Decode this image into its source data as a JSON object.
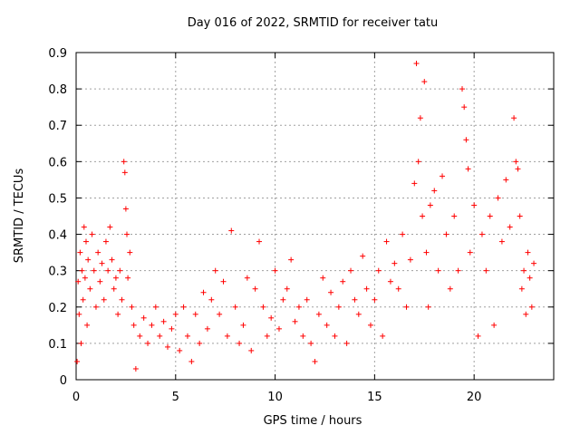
{
  "chart_data": {
    "type": "scatter",
    "title": "Day 016 of 2022, SRMTID for receiver tatu",
    "xlabel": "GPS time / hours",
    "ylabel": "SRMTID / TECUs",
    "xlim": [
      0,
      24
    ],
    "ylim": [
      0,
      0.9
    ],
    "xticks": [
      0,
      5,
      10,
      15,
      20
    ],
    "yticks": [
      0,
      0.1,
      0.2,
      0.3,
      0.4,
      0.5,
      0.6,
      0.7,
      0.8,
      0.9
    ],
    "grid": true,
    "marker": "+",
    "series": [
      {
        "name": "SRMTID",
        "color": "#ff0000",
        "points": [
          [
            0.05,
            0.05
          ],
          [
            0.1,
            0.27
          ],
          [
            0.15,
            0.18
          ],
          [
            0.2,
            0.35
          ],
          [
            0.25,
            0.1
          ],
          [
            0.3,
            0.3
          ],
          [
            0.35,
            0.22
          ],
          [
            0.4,
            0.42
          ],
          [
            0.45,
            0.28
          ],
          [
            0.5,
            0.38
          ],
          [
            0.55,
            0.15
          ],
          [
            0.6,
            0.33
          ],
          [
            0.7,
            0.25
          ],
          [
            0.8,
            0.4
          ],
          [
            0.9,
            0.3
          ],
          [
            1.0,
            0.2
          ],
          [
            1.1,
            0.35
          ],
          [
            1.2,
            0.27
          ],
          [
            1.3,
            0.32
          ],
          [
            1.4,
            0.22
          ],
          [
            1.5,
            0.38
          ],
          [
            1.6,
            0.3
          ],
          [
            1.7,
            0.42
          ],
          [
            1.8,
            0.33
          ],
          [
            1.9,
            0.25
          ],
          [
            2.0,
            0.28
          ],
          [
            2.1,
            0.18
          ],
          [
            2.2,
            0.3
          ],
          [
            2.3,
            0.22
          ],
          [
            2.4,
            0.6
          ],
          [
            2.45,
            0.57
          ],
          [
            2.5,
            0.47
          ],
          [
            2.55,
            0.4
          ],
          [
            2.6,
            0.28
          ],
          [
            2.7,
            0.35
          ],
          [
            2.8,
            0.2
          ],
          [
            2.9,
            0.15
          ],
          [
            3.0,
            0.03
          ],
          [
            3.2,
            0.12
          ],
          [
            3.4,
            0.17
          ],
          [
            3.6,
            0.1
          ],
          [
            3.8,
            0.15
          ],
          [
            4.0,
            0.2
          ],
          [
            4.2,
            0.12
          ],
          [
            4.4,
            0.16
          ],
          [
            4.6,
            0.09
          ],
          [
            4.8,
            0.14
          ],
          [
            5.0,
            0.18
          ],
          [
            5.2,
            0.08
          ],
          [
            5.4,
            0.2
          ],
          [
            5.6,
            0.12
          ],
          [
            5.8,
            0.05
          ],
          [
            6.0,
            0.18
          ],
          [
            6.2,
            0.1
          ],
          [
            6.4,
            0.24
          ],
          [
            6.6,
            0.14
          ],
          [
            6.8,
            0.22
          ],
          [
            7.0,
            0.3
          ],
          [
            7.2,
            0.18
          ],
          [
            7.4,
            0.27
          ],
          [
            7.6,
            0.12
          ],
          [
            7.8,
            0.41
          ],
          [
            8.0,
            0.2
          ],
          [
            8.2,
            0.1
          ],
          [
            8.4,
            0.15
          ],
          [
            8.6,
            0.28
          ],
          [
            8.8,
            0.08
          ],
          [
            9.0,
            0.25
          ],
          [
            9.2,
            0.38
          ],
          [
            9.4,
            0.2
          ],
          [
            9.6,
            0.12
          ],
          [
            9.8,
            0.17
          ],
          [
            10.0,
            0.3
          ],
          [
            10.2,
            0.14
          ],
          [
            10.4,
            0.22
          ],
          [
            10.6,
            0.25
          ],
          [
            10.8,
            0.33
          ],
          [
            11.0,
            0.16
          ],
          [
            11.2,
            0.2
          ],
          [
            11.4,
            0.12
          ],
          [
            11.6,
            0.22
          ],
          [
            11.8,
            0.1
          ],
          [
            12.0,
            0.05
          ],
          [
            12.2,
            0.18
          ],
          [
            12.4,
            0.28
          ],
          [
            12.6,
            0.15
          ],
          [
            12.8,
            0.24
          ],
          [
            13.0,
            0.12
          ],
          [
            13.2,
            0.2
          ],
          [
            13.4,
            0.27
          ],
          [
            13.6,
            0.1
          ],
          [
            13.8,
            0.3
          ],
          [
            14.0,
            0.22
          ],
          [
            14.2,
            0.18
          ],
          [
            14.4,
            0.34
          ],
          [
            14.6,
            0.25
          ],
          [
            14.8,
            0.15
          ],
          [
            15.0,
            0.22
          ],
          [
            15.2,
            0.3
          ],
          [
            15.4,
            0.12
          ],
          [
            15.6,
            0.38
          ],
          [
            15.8,
            0.27
          ],
          [
            16.0,
            0.32
          ],
          [
            16.2,
            0.25
          ],
          [
            16.4,
            0.4
          ],
          [
            16.6,
            0.2
          ],
          [
            16.8,
            0.33
          ],
          [
            17.0,
            0.54
          ],
          [
            17.1,
            0.87
          ],
          [
            17.2,
            0.6
          ],
          [
            17.3,
            0.72
          ],
          [
            17.4,
            0.45
          ],
          [
            17.5,
            0.82
          ],
          [
            17.6,
            0.35
          ],
          [
            17.7,
            0.2
          ],
          [
            17.8,
            0.48
          ],
          [
            18.0,
            0.52
          ],
          [
            18.2,
            0.3
          ],
          [
            18.4,
            0.56
          ],
          [
            18.6,
            0.4
          ],
          [
            18.8,
            0.25
          ],
          [
            19.0,
            0.45
          ],
          [
            19.2,
            0.3
          ],
          [
            19.4,
            0.8
          ],
          [
            19.5,
            0.75
          ],
          [
            19.6,
            0.66
          ],
          [
            19.7,
            0.58
          ],
          [
            19.8,
            0.35
          ],
          [
            20.0,
            0.48
          ],
          [
            20.2,
            0.12
          ],
          [
            20.4,
            0.4
          ],
          [
            20.6,
            0.3
          ],
          [
            20.8,
            0.45
          ],
          [
            21.0,
            0.15
          ],
          [
            21.2,
            0.5
          ],
          [
            21.4,
            0.38
          ],
          [
            21.6,
            0.55
          ],
          [
            21.8,
            0.42
          ],
          [
            22.0,
            0.72
          ],
          [
            22.1,
            0.6
          ],
          [
            22.2,
            0.58
          ],
          [
            22.3,
            0.45
          ],
          [
            22.4,
            0.25
          ],
          [
            22.5,
            0.3
          ],
          [
            22.6,
            0.18
          ],
          [
            22.7,
            0.35
          ],
          [
            22.8,
            0.28
          ],
          [
            22.9,
            0.2
          ],
          [
            23.0,
            0.32
          ]
        ]
      }
    ]
  }
}
